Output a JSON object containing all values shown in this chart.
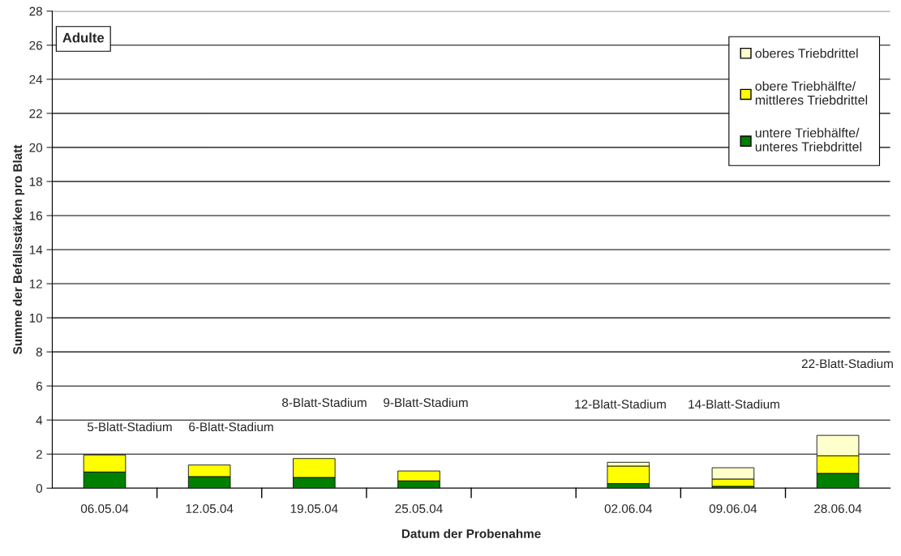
{
  "chart_data": {
    "type": "bar",
    "stacked": true,
    "xlabel": "Datum der Probenahme",
    "ylabel": "Summe der Befallsstärken pro Blatt",
    "categories": [
      "06.05.04",
      "12.05.04",
      "19.05.04",
      "25.05.04",
      null,
      "02.06.04",
      "09.06.04",
      "28.06.04"
    ],
    "series": [
      {
        "name": "untere Triebhälfte/\nunteres Triebdrittel",
        "color": "#008000",
        "values": [
          0.95,
          0.68,
          0.63,
          0.43,
          null,
          0.27,
          0.11,
          0.87
        ]
      },
      {
        "name": "obere Triebhälfte/\nmittleres Triebdrittel",
        "color": "#ffff00",
        "values": [
          1.0,
          0.68,
          1.11,
          0.58,
          null,
          1.03,
          0.43,
          1.03
        ]
      },
      {
        "name": "oberes Triebdrittel",
        "color": "#ffffcc",
        "values": [
          null,
          null,
          null,
          null,
          null,
          0.22,
          0.66,
          1.2
        ]
      }
    ],
    "ylim": [
      0,
      28
    ],
    "yticks": [
      0,
      2,
      4,
      6,
      8,
      10,
      12,
      14,
      16,
      18,
      20,
      22,
      24,
      26,
      28
    ],
    "grid": "y",
    "legend": "top right",
    "annotations": [
      "Adulte",
      "5-Blatt-Stadium",
      "6-Blatt-Stadium",
      "8-Blatt-Stadium",
      "9-Blatt-Stadium",
      "12-Blatt-Stadium",
      "14-Blatt-Stadium",
      "22-Blatt-Stadium"
    ]
  }
}
